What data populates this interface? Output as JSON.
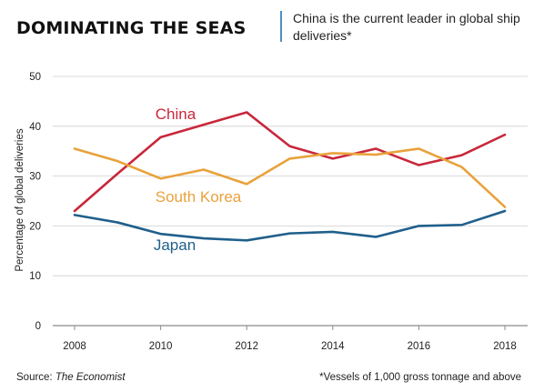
{
  "header": {
    "title": "DOMINATING THE SEAS",
    "subtitle": "China is the current leader in global ship deliveries*"
  },
  "footer": {
    "source_prefix": "Source: ",
    "source_name": "The Economist",
    "footnote": "*Vessels of 1,000 gross tonnage and above"
  },
  "chart_data": {
    "type": "line",
    "title": "DOMINATING THE SEAS",
    "subtitle": "China is the current leader in global ship deliveries*",
    "xlabel": "",
    "ylabel": "Percentage of global deliveries",
    "x": [
      2008,
      2009,
      2010,
      2011,
      2012,
      2013,
      2014,
      2015,
      2016,
      2017,
      2018
    ],
    "xticks": [
      2008,
      2010,
      2012,
      2014,
      2016,
      2018
    ],
    "yticks": [
      0,
      10,
      20,
      30,
      40,
      50
    ],
    "xlim": [
      2008,
      2018
    ],
    "ylim": [
      0,
      50
    ],
    "grid": "horizontal",
    "legend": "labels-inline",
    "series": [
      {
        "name": "China",
        "color": "#c8273b",
        "values": [
          23,
          30.5,
          37.8,
          40.3,
          42.8,
          36,
          33.5,
          35.5,
          32.2,
          34.2,
          38.3
        ]
      },
      {
        "name": "South Korea",
        "color": "#e9a23b",
        "values": [
          35.5,
          33,
          29.5,
          31.3,
          28.4,
          33.5,
          34.6,
          34.3,
          35.5,
          31.8,
          23.8
        ]
      },
      {
        "name": "Japan",
        "color": "#1f5f8b",
        "values": [
          22.2,
          20.7,
          18.4,
          17.5,
          17.1,
          18.5,
          18.8,
          17.8,
          20,
          20.2,
          23
        ]
      }
    ]
  }
}
